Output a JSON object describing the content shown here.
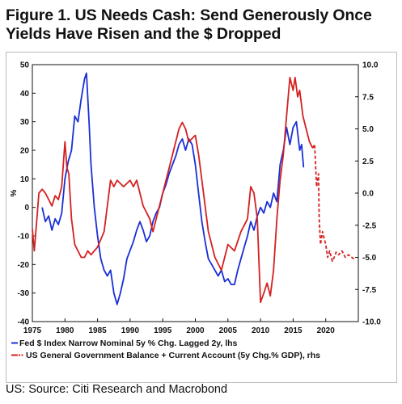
{
  "figure": {
    "title_line1": "Figure 1. US Needs Cash: Send Generously Once",
    "title_line2": "Yields Have Risen and the $ Dropped",
    "source": "US: Source: Citi Research and Macrobond"
  },
  "chart_data": {
    "type": "line",
    "title": "Figure 1. US Needs Cash: Send Generously Once Yields Have Risen and the $ Dropped",
    "ylabel_left": "%",
    "ylim_left": [
      -40,
      50
    ],
    "ylim_right": [
      -10,
      10
    ],
    "xlim": [
      1975,
      2025
    ],
    "x_ticks": [
      "1975",
      "1980",
      "1985",
      "1990",
      "1995",
      "2000",
      "2005",
      "2010",
      "2015",
      "2020"
    ],
    "left_ticks": [
      "50",
      "40",
      "30",
      "20",
      "10",
      "0",
      "-10",
      "-20",
      "-30",
      "-40"
    ],
    "right_ticks": [
      "10.0",
      "7.5",
      "5.0",
      "2.5",
      "0.0",
      "-2.5",
      "-5.0",
      "-7.5",
      "-10.0"
    ],
    "grid": false,
    "legend": "bottom",
    "series": [
      {
        "name": "Fed $ Index Narrow Nominal 5y % Chg. Lagged 2y, lhs",
        "axis": "left",
        "color": "#1a2fd6",
        "points": [
          [
            1976.5,
            0
          ],
          [
            1977,
            -5
          ],
          [
            1977.5,
            -3
          ],
          [
            1978,
            -8
          ],
          [
            1978.5,
            -4
          ],
          [
            1979,
            -6
          ],
          [
            1979.5,
            -2
          ],
          [
            1980,
            10
          ],
          [
            1980.5,
            16
          ],
          [
            1981,
            20
          ],
          [
            1981.5,
            32
          ],
          [
            1982,
            30
          ],
          [
            1982.5,
            38
          ],
          [
            1983,
            45
          ],
          [
            1983.3,
            47
          ],
          [
            1983.7,
            30
          ],
          [
            1984,
            15
          ],
          [
            1984.5,
            0
          ],
          [
            1985,
            -10
          ],
          [
            1985.5,
            -18
          ],
          [
            1986,
            -22
          ],
          [
            1986.5,
            -24
          ],
          [
            1987,
            -22
          ],
          [
            1987.5,
            -30
          ],
          [
            1988,
            -34
          ],
          [
            1988.5,
            -30
          ],
          [
            1989,
            -25
          ],
          [
            1989.5,
            -18
          ],
          [
            1990,
            -15
          ],
          [
            1990.5,
            -12
          ],
          [
            1991,
            -8
          ],
          [
            1991.5,
            -5
          ],
          [
            1992,
            -8
          ],
          [
            1992.5,
            -12
          ],
          [
            1993,
            -10
          ],
          [
            1993.5,
            -5
          ],
          [
            1994,
            -2
          ],
          [
            1994.5,
            0
          ],
          [
            1995,
            5
          ],
          [
            1995.5,
            8
          ],
          [
            1996,
            12
          ],
          [
            1996.5,
            15
          ],
          [
            1997,
            18
          ],
          [
            1997.5,
            22
          ],
          [
            1998,
            24
          ],
          [
            1998.5,
            20
          ],
          [
            1999,
            24
          ],
          [
            1999.5,
            22
          ],
          [
            2000,
            15
          ],
          [
            2000.5,
            5
          ],
          [
            2001,
            -5
          ],
          [
            2001.5,
            -12
          ],
          [
            2002,
            -18
          ],
          [
            2002.5,
            -20
          ],
          [
            2003,
            -22
          ],
          [
            2003.5,
            -24
          ],
          [
            2004,
            -22
          ],
          [
            2004.5,
            -26
          ],
          [
            2005,
            -25
          ],
          [
            2005.5,
            -27
          ],
          [
            2006,
            -27
          ],
          [
            2006.5,
            -22
          ],
          [
            2007,
            -18
          ],
          [
            2007.5,
            -14
          ],
          [
            2008,
            -10
          ],
          [
            2008.5,
            -5
          ],
          [
            2009,
            -8
          ],
          [
            2009.5,
            -3
          ],
          [
            2010,
            0
          ],
          [
            2010.5,
            -2
          ],
          [
            2011,
            2
          ],
          [
            2011.5,
            0
          ],
          [
            2012,
            5
          ],
          [
            2012.5,
            2
          ],
          [
            2013,
            15
          ],
          [
            2013.5,
            20
          ],
          [
            2014,
            28
          ],
          [
            2014.5,
            22
          ],
          [
            2015,
            28
          ],
          [
            2015.5,
            30
          ],
          [
            2016,
            20
          ],
          [
            2016.3,
            22
          ],
          [
            2016.6,
            14
          ]
        ]
      },
      {
        "name": "US General Government Balance + Current Account  (5y Chg.% GDP), rhs",
        "axis": "right",
        "color": "#d42020",
        "points": [
          [
            1975,
            -2.8
          ],
          [
            1975.3,
            -4.5
          ],
          [
            1975.7,
            -2
          ],
          [
            1976,
            0
          ],
          [
            1976.5,
            0.3
          ],
          [
            1977,
            0
          ],
          [
            1977.5,
            -0.5
          ],
          [
            1978,
            -1
          ],
          [
            1978.5,
            -0.2
          ],
          [
            1979,
            -0.5
          ],
          [
            1979.5,
            0.5
          ],
          [
            1980,
            4
          ],
          [
            1980.3,
            2
          ],
          [
            1980.6,
            1.5
          ],
          [
            1981,
            -2
          ],
          [
            1981.5,
            -4
          ],
          [
            1982,
            -4.5
          ],
          [
            1982.5,
            -5
          ],
          [
            1983,
            -5
          ],
          [
            1983.5,
            -4.5
          ],
          [
            1984,
            -4.8
          ],
          [
            1984.5,
            -4.5
          ],
          [
            1985,
            -4.2
          ],
          [
            1986,
            -3
          ],
          [
            1987,
            1
          ],
          [
            1987.5,
            0.5
          ],
          [
            1988,
            1
          ],
          [
            1989,
            0.5
          ],
          [
            1990,
            1
          ],
          [
            1990.5,
            0.5
          ],
          [
            1991,
            1
          ],
          [
            1992,
            -1
          ],
          [
            1993,
            -2
          ],
          [
            1993.5,
            -3
          ],
          [
            1994,
            -2
          ],
          [
            1995,
            0
          ],
          [
            1996,
            2
          ],
          [
            1997,
            4
          ],
          [
            1997.5,
            5
          ],
          [
            1998,
            5.5
          ],
          [
            1998.5,
            5
          ],
          [
            1999,
            4
          ],
          [
            2000,
            4.5
          ],
          [
            2000.5,
            3
          ],
          [
            2001,
            1
          ],
          [
            2001.5,
            -1
          ],
          [
            2002,
            -3
          ],
          [
            2003,
            -5
          ],
          [
            2004,
            -6
          ],
          [
            2004.5,
            -5
          ],
          [
            2005,
            -4
          ],
          [
            2006,
            -4.5
          ],
          [
            2007,
            -3
          ],
          [
            2008,
            -2
          ],
          [
            2008.5,
            0.5
          ],
          [
            2009,
            0
          ],
          [
            2009.5,
            -2
          ],
          [
            2010,
            -8.5
          ],
          [
            2010.5,
            -7.8
          ],
          [
            2011,
            -7
          ],
          [
            2011.5,
            -8
          ],
          [
            2012,
            -6
          ],
          [
            2012.5,
            -2
          ],
          [
            2013,
            1
          ],
          [
            2013.5,
            3
          ],
          [
            2014,
            6
          ],
          [
            2014.5,
            9
          ],
          [
            2015,
            8
          ],
          [
            2015.3,
            9
          ],
          [
            2015.7,
            7.5
          ],
          [
            2016,
            8
          ],
          [
            2016.5,
            6
          ],
          [
            2017,
            5
          ],
          [
            2017.5,
            4
          ],
          [
            2018,
            3.5
          ]
        ]
      },
      {
        "name": "US General Government Balance + Current Account  (5y Chg.% GDP), rhs",
        "axis": "right",
        "color": "#d42020",
        "dashed": true,
        "points": [
          [
            2018,
            3.5
          ],
          [
            2018.3,
            3.8
          ],
          [
            2018.6,
            0.5
          ],
          [
            2018.9,
            1.5
          ],
          [
            2019,
            -2
          ],
          [
            2019.2,
            -4
          ],
          [
            2019.5,
            -3
          ],
          [
            2020,
            -4
          ],
          [
            2020.3,
            -5
          ],
          [
            2020.6,
            -4.5
          ],
          [
            2021,
            -5.3
          ],
          [
            2021.3,
            -5
          ],
          [
            2021.6,
            -4.6
          ],
          [
            2022,
            -4.8
          ],
          [
            2022.5,
            -4.5
          ],
          [
            2023,
            -5
          ],
          [
            2023.5,
            -4.8
          ],
          [
            2024,
            -5
          ],
          [
            2024.5,
            -5.2
          ]
        ]
      }
    ]
  }
}
